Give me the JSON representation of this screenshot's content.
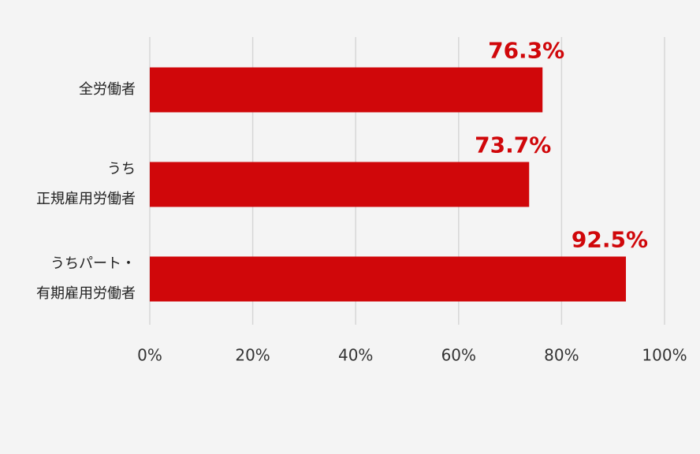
{
  "chart_data": {
    "type": "barh",
    "categories": [
      [
        "全労働者"
      ],
      [
        "うち",
        "正規雇用労働者"
      ],
      [
        "うちパート・",
        "有期雇用労働者"
      ]
    ],
    "values": [
      76.3,
      73.7,
      92.5
    ],
    "value_labels": [
      "76.3%",
      "73.7%",
      "92.5%"
    ],
    "color": "#d0070a",
    "xlim": [
      0,
      100
    ],
    "xticks": [
      {
        "value": 0,
        "label": "0%"
      },
      {
        "value": 20,
        "label": "20%"
      },
      {
        "value": 40,
        "label": "40%"
      },
      {
        "value": 60,
        "label": "60%"
      },
      {
        "value": 80,
        "label": "80%"
      },
      {
        "value": 100,
        "label": "100%"
      }
    ],
    "grid": true
  }
}
